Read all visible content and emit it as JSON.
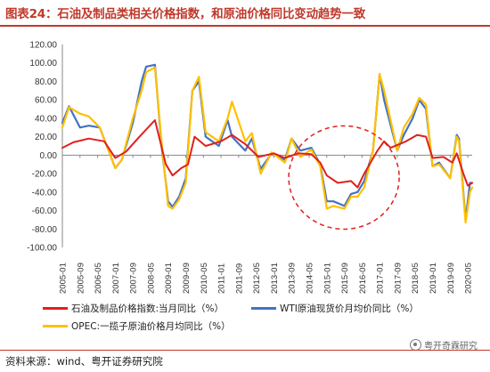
{
  "header": {
    "title": "图表24：石油及制品类相关价格指数，和原油价格同比变动趋势一致"
  },
  "footer": {
    "source": "资料来源：wind、粤开证券研究院",
    "watermark": "粤开奇霖研究"
  },
  "colors": {
    "red": "#e0201c",
    "blue": "#4472c4",
    "yellow": "#ffc000",
    "circle": "#e0201c",
    "axis": "#888888"
  },
  "chart_data": {
    "type": "line",
    "ylim": [
      -100,
      120
    ],
    "yticks": [
      "120.00",
      "100.00",
      "80.00",
      "60.00",
      "40.00",
      "20.00",
      "0.00",
      "-20.00",
      "-40.00",
      "-60.00",
      "-80.00",
      "-100.00"
    ],
    "xticks": [
      "2005-01",
      "2005-09",
      "2006-05",
      "2007-01",
      "2007-09",
      "2008-05",
      "2009-01",
      "2009-09",
      "2010-05",
      "2011-01",
      "2011-09",
      "2012-05",
      "2013-01",
      "2013-09",
      "2014-05",
      "2015-01",
      "2015-09",
      "2016-05",
      "2017-01",
      "2017-09",
      "2018-05",
      "2019-01",
      "2019-09",
      "2020-05"
    ],
    "grid": false,
    "legend_position": "bottom",
    "annotation": "dashed red circle around 2014-10 to 2016-06",
    "series": [
      {
        "name": "石油及制品价格指数:当月同比（%）",
        "points": [
          [
            "2005-01",
            8
          ],
          [
            "2005-06",
            14
          ],
          [
            "2006-01",
            18
          ],
          [
            "2006-08",
            15
          ],
          [
            "2007-01",
            -3
          ],
          [
            "2007-06",
            4
          ],
          [
            "2007-12",
            20
          ],
          [
            "2008-07",
            38
          ],
          [
            "2008-12",
            -10
          ],
          [
            "2009-03",
            -22
          ],
          [
            "2009-07",
            -14
          ],
          [
            "2009-10",
            -10
          ],
          [
            "2010-01",
            20
          ],
          [
            "2010-06",
            10
          ],
          [
            "2011-01",
            15
          ],
          [
            "2011-06",
            22
          ],
          [
            "2011-12",
            12
          ],
          [
            "2012-06",
            -2
          ],
          [
            "2013-01",
            2
          ],
          [
            "2013-06",
            -3
          ],
          [
            "2013-12",
            2
          ],
          [
            "2014-06",
            1
          ],
          [
            "2014-10",
            -8
          ],
          [
            "2015-01",
            -22
          ],
          [
            "2015-06",
            -30
          ],
          [
            "2015-12",
            -28
          ],
          [
            "2016-03",
            -35
          ],
          [
            "2016-06",
            -20
          ],
          [
            "2016-12",
            5
          ],
          [
            "2017-03",
            15
          ],
          [
            "2017-06",
            8
          ],
          [
            "2018-01",
            15
          ],
          [
            "2018-06",
            22
          ],
          [
            "2018-10",
            20
          ],
          [
            "2019-01",
            -3
          ],
          [
            "2019-06",
            -2
          ],
          [
            "2019-10",
            -8
          ],
          [
            "2019-12",
            2
          ],
          [
            "2020-03",
            -20
          ],
          [
            "2020-05",
            -33
          ],
          [
            "2020-07",
            -30
          ]
        ]
      },
      {
        "name": "WTI原油现货价月均价同比（%）",
        "points": [
          [
            "2005-01",
            35
          ],
          [
            "2005-04",
            53
          ],
          [
            "2005-09",
            30
          ],
          [
            "2006-01",
            32
          ],
          [
            "2006-06",
            30
          ],
          [
            "2007-01",
            -14
          ],
          [
            "2007-04",
            -5
          ],
          [
            "2007-09",
            35
          ],
          [
            "2008-01",
            80
          ],
          [
            "2008-03",
            96
          ],
          [
            "2008-07",
            98
          ],
          [
            "2008-10",
            10
          ],
          [
            "2009-01",
            -50
          ],
          [
            "2009-03",
            -56
          ],
          [
            "2009-06",
            -45
          ],
          [
            "2009-09",
            -25
          ],
          [
            "2009-12",
            70
          ],
          [
            "2010-03",
            80
          ],
          [
            "2010-06",
            20
          ],
          [
            "2010-12",
            10
          ],
          [
            "2011-04",
            38
          ],
          [
            "2011-06",
            20
          ],
          [
            "2011-12",
            5
          ],
          [
            "2012-03",
            18
          ],
          [
            "2012-07",
            -15
          ],
          [
            "2012-12",
            2
          ],
          [
            "2013-06",
            -5
          ],
          [
            "2013-09",
            18
          ],
          [
            "2014-01",
            5
          ],
          [
            "2014-06",
            8
          ],
          [
            "2014-10",
            -10
          ],
          [
            "2015-01",
            -50
          ],
          [
            "2015-04",
            -50
          ],
          [
            "2015-09",
            -55
          ],
          [
            "2015-12",
            -42
          ],
          [
            "2016-03",
            -40
          ],
          [
            "2016-06",
            -28
          ],
          [
            "2016-10",
            5
          ],
          [
            "2017-01",
            88
          ],
          [
            "2017-03",
            60
          ],
          [
            "2017-09",
            5
          ],
          [
            "2017-12",
            22
          ],
          [
            "2018-04",
            40
          ],
          [
            "2018-07",
            60
          ],
          [
            "2018-10",
            50
          ],
          [
            "2019-01",
            -12
          ],
          [
            "2019-04",
            -8
          ],
          [
            "2019-09",
            -25
          ],
          [
            "2019-12",
            22
          ],
          [
            "2020-01",
            18
          ],
          [
            "2020-04",
            -70
          ],
          [
            "2020-06",
            -30
          ],
          [
            "2020-07",
            -30
          ]
        ]
      },
      {
        "name": "OPEC:一揽子原油价格月均同比（%）",
        "points": [
          [
            "2005-01",
            30
          ],
          [
            "2005-04",
            52
          ],
          [
            "2005-09",
            45
          ],
          [
            "2006-01",
            42
          ],
          [
            "2006-06",
            30
          ],
          [
            "2007-01",
            -14
          ],
          [
            "2007-04",
            -5
          ],
          [
            "2007-09",
            40
          ],
          [
            "2008-01",
            70
          ],
          [
            "2008-03",
            90
          ],
          [
            "2008-07",
            95
          ],
          [
            "2008-10",
            15
          ],
          [
            "2009-01",
            -55
          ],
          [
            "2009-03",
            -58
          ],
          [
            "2009-06",
            -48
          ],
          [
            "2009-09",
            -30
          ],
          [
            "2009-12",
            70
          ],
          [
            "2010-03",
            85
          ],
          [
            "2010-06",
            25
          ],
          [
            "2010-12",
            15
          ],
          [
            "2011-04",
            40
          ],
          [
            "2011-06",
            58
          ],
          [
            "2011-12",
            15
          ],
          [
            "2012-03",
            24
          ],
          [
            "2012-07",
            -20
          ],
          [
            "2012-12",
            3
          ],
          [
            "2013-06",
            -8
          ],
          [
            "2013-09",
            18
          ],
          [
            "2014-01",
            -2
          ],
          [
            "2014-06",
            6
          ],
          [
            "2014-10",
            -12
          ],
          [
            "2015-01",
            -58
          ],
          [
            "2015-04",
            -55
          ],
          [
            "2015-09",
            -58
          ],
          [
            "2015-12",
            -45
          ],
          [
            "2016-03",
            -45
          ],
          [
            "2016-06",
            -35
          ],
          [
            "2016-10",
            5
          ],
          [
            "2017-01",
            88
          ],
          [
            "2017-03",
            70
          ],
          [
            "2017-09",
            5
          ],
          [
            "2017-12",
            30
          ],
          [
            "2018-04",
            45
          ],
          [
            "2018-07",
            62
          ],
          [
            "2018-10",
            55
          ],
          [
            "2019-01",
            -12
          ],
          [
            "2019-04",
            -10
          ],
          [
            "2019-09",
            -25
          ],
          [
            "2019-12",
            20
          ],
          [
            "2020-01",
            15
          ],
          [
            "2020-04",
            -73
          ],
          [
            "2020-06",
            -40
          ],
          [
            "2020-07",
            -35
          ]
        ]
      }
    ]
  }
}
